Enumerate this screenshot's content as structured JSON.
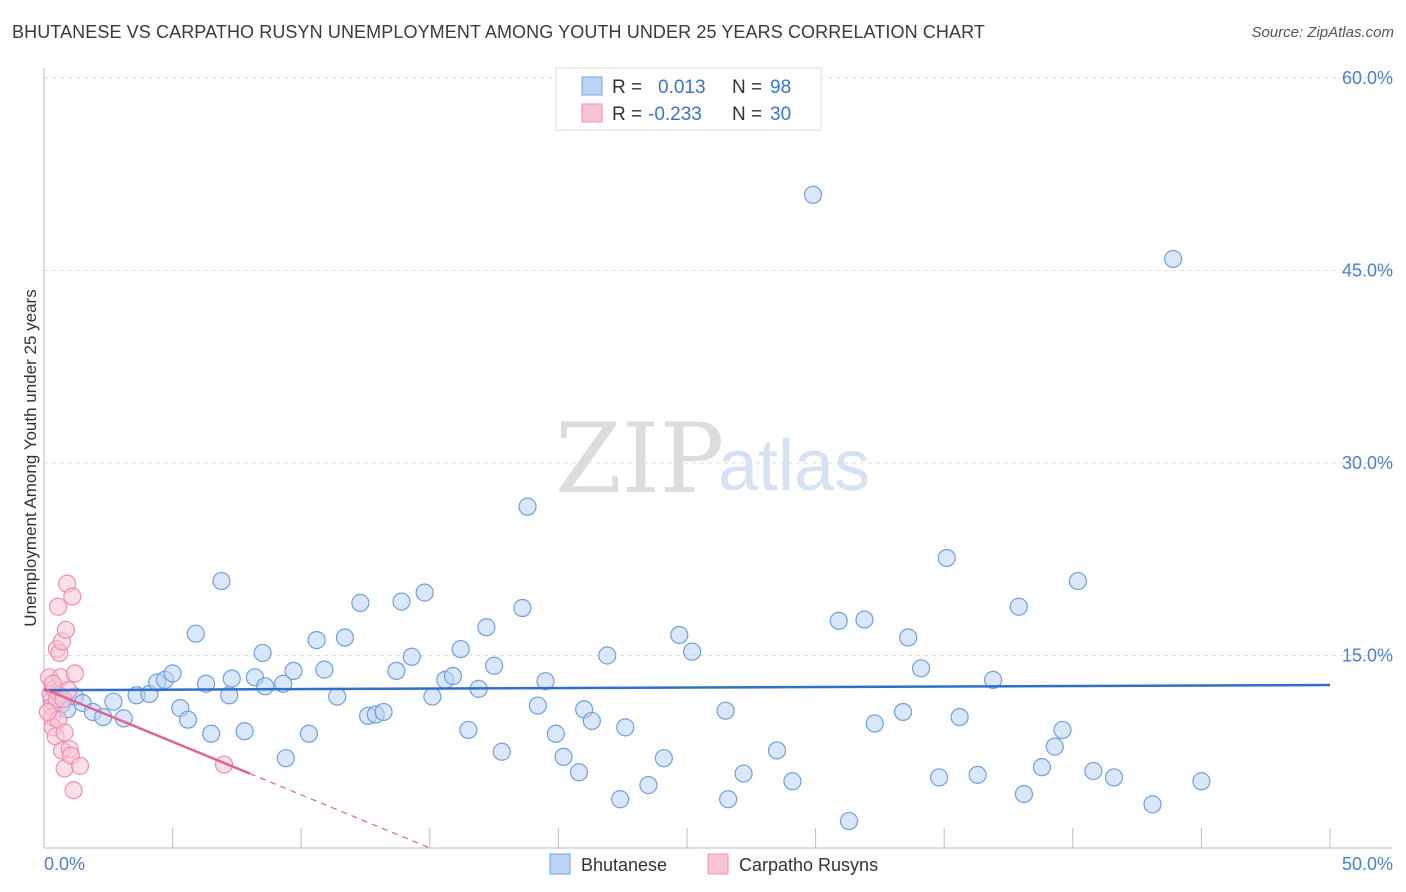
{
  "header": {
    "title": "BHUTANESE VS CARPATHO RUSYN UNEMPLOYMENT AMONG YOUTH UNDER 25 YEARS CORRELATION CHART",
    "source": "Source: ZipAtlas.com"
  },
  "watermark": {
    "zip": "ZIP",
    "atlas": "atlas"
  },
  "colors": {
    "blue": "#6fa0e0",
    "blue_fill": "#bcd4f4",
    "blue_line": "#2f6fc9",
    "pink": "#ef8fb0",
    "pink_fill": "#f8c4d6",
    "pink_line": "#e0648f"
  },
  "chart_data": {
    "type": "scatter",
    "title": "BHUTANESE VS CARPATHO RUSYN UNEMPLOYMENT AMONG YOUTH UNDER 25 YEARS CORRELATION CHART",
    "xlabel": "",
    "ylabel": "Unemployment Among Youth under 25 years",
    "xlim": [
      0,
      50
    ],
    "ylim": [
      0,
      60
    ],
    "x_tick_labels": [
      "0.0%",
      "50.0%"
    ],
    "y_ticks": [
      15,
      30,
      45,
      60
    ],
    "y_tick_labels": [
      "15.0%",
      "30.0%",
      "45.0%",
      "60.0%"
    ],
    "legend": [
      {
        "name": "Bhutanese",
        "r_label": "R =",
        "r": "0.013",
        "n_label": "N =",
        "n": "98"
      },
      {
        "name": "Carpatho Rusyns",
        "r_label": "R =",
        "r": "-0.233",
        "n_label": "N =",
        "n": "30"
      }
    ],
    "series": [
      {
        "name": "Bhutanese",
        "trend": {
          "x": [
            0,
            50
          ],
          "y": [
            12.3,
            12.7
          ]
        },
        "points": [
          [
            0.3,
            11.5
          ],
          [
            0.5,
            12.0
          ],
          [
            0.7,
            11.2
          ],
          [
            0.9,
            10.8
          ],
          [
            1.2,
            11.8
          ],
          [
            1.5,
            11.3
          ],
          [
            1.9,
            10.6
          ],
          [
            2.3,
            10.2
          ],
          [
            2.7,
            11.4
          ],
          [
            3.1,
            10.1
          ],
          [
            3.6,
            11.9
          ],
          [
            4.1,
            12.0
          ],
          [
            4.4,
            12.9
          ],
          [
            4.7,
            13.1
          ],
          [
            5.0,
            13.6
          ],
          [
            5.3,
            10.9
          ],
          [
            5.6,
            10.0
          ],
          [
            5.9,
            16.7
          ],
          [
            6.3,
            12.8
          ],
          [
            6.5,
            8.9
          ],
          [
            6.9,
            20.8
          ],
          [
            7.2,
            11.9
          ],
          [
            7.3,
            13.2
          ],
          [
            7.8,
            9.1
          ],
          [
            8.2,
            13.3
          ],
          [
            8.5,
            15.2
          ],
          [
            8.6,
            12.6
          ],
          [
            9.3,
            12.8
          ],
          [
            9.4,
            7.0
          ],
          [
            9.7,
            13.8
          ],
          [
            10.3,
            8.9
          ],
          [
            10.6,
            16.2
          ],
          [
            10.9,
            13.9
          ],
          [
            11.4,
            11.8
          ],
          [
            11.7,
            16.4
          ],
          [
            12.3,
            19.1
          ],
          [
            12.6,
            10.3
          ],
          [
            12.9,
            10.4
          ],
          [
            13.2,
            10.6
          ],
          [
            13.7,
            13.8
          ],
          [
            13.9,
            19.2
          ],
          [
            14.3,
            14.9
          ],
          [
            14.8,
            19.9
          ],
          [
            15.1,
            11.8
          ],
          [
            15.6,
            13.1
          ],
          [
            15.9,
            13.4
          ],
          [
            16.2,
            15.5
          ],
          [
            16.5,
            9.2
          ],
          [
            16.9,
            12.4
          ],
          [
            17.2,
            17.2
          ],
          [
            17.5,
            14.2
          ],
          [
            17.8,
            7.5
          ],
          [
            18.6,
            18.7
          ],
          [
            18.8,
            26.6
          ],
          [
            19.2,
            11.1
          ],
          [
            19.5,
            13.0
          ],
          [
            19.9,
            8.9
          ],
          [
            20.2,
            7.1
          ],
          [
            20.8,
            5.9
          ],
          [
            21.0,
            10.8
          ],
          [
            21.3,
            9.9
          ],
          [
            21.9,
            15.0
          ],
          [
            22.4,
            3.8
          ],
          [
            22.6,
            9.4
          ],
          [
            23.5,
            4.9
          ],
          [
            24.1,
            7.0
          ],
          [
            24.7,
            16.6
          ],
          [
            25.2,
            15.3
          ],
          [
            26.5,
            10.7
          ],
          [
            26.6,
            3.8
          ],
          [
            27.2,
            5.8
          ],
          [
            28.5,
            7.6
          ],
          [
            29.1,
            5.2
          ],
          [
            29.9,
            50.9
          ],
          [
            30.9,
            17.7
          ],
          [
            31.3,
            2.1
          ],
          [
            31.9,
            17.8
          ],
          [
            32.3,
            9.7
          ],
          [
            33.4,
            10.6
          ],
          [
            33.6,
            16.4
          ],
          [
            34.1,
            14.0
          ],
          [
            34.8,
            5.5
          ],
          [
            35.1,
            22.6
          ],
          [
            35.6,
            10.2
          ],
          [
            36.3,
            5.7
          ],
          [
            36.9,
            13.1
          ],
          [
            37.9,
            18.8
          ],
          [
            38.1,
            4.2
          ],
          [
            38.8,
            6.3
          ],
          [
            39.3,
            7.9
          ],
          [
            39.6,
            9.2
          ],
          [
            40.2,
            20.8
          ],
          [
            40.8,
            6.0
          ],
          [
            41.6,
            5.5
          ],
          [
            43.1,
            3.4
          ],
          [
            43.9,
            45.9
          ],
          [
            45.0,
            5.2
          ],
          [
            0.6,
            11.9
          ]
        ]
      },
      {
        "name": "Carpatho Rusyns",
        "trend": {
          "x": [
            0,
            8
          ],
          "y": [
            12.4,
            5.8
          ]
        },
        "trend_dashed": {
          "x": [
            8,
            15
          ],
          "y": [
            5.8,
            0.0
          ]
        },
        "points": [
          [
            0.2,
            13.3
          ],
          [
            0.25,
            12.0
          ],
          [
            0.3,
            11.0
          ],
          [
            0.3,
            10.2
          ],
          [
            0.35,
            9.4
          ],
          [
            0.4,
            12.4
          ],
          [
            0.45,
            8.7
          ],
          [
            0.5,
            15.5
          ],
          [
            0.5,
            11.6
          ],
          [
            0.55,
            18.8
          ],
          [
            0.55,
            10.0
          ],
          [
            0.6,
            15.2
          ],
          [
            0.65,
            13.3
          ],
          [
            0.7,
            16.1
          ],
          [
            0.7,
            7.6
          ],
          [
            0.75,
            11.6
          ],
          [
            0.8,
            9.0
          ],
          [
            0.8,
            6.2
          ],
          [
            0.85,
            17.0
          ],
          [
            0.9,
            20.6
          ],
          [
            0.95,
            12.3
          ],
          [
            1.0,
            7.7
          ],
          [
            1.05,
            7.2
          ],
          [
            1.1,
            19.6
          ],
          [
            1.15,
            4.5
          ],
          [
            1.2,
            13.6
          ],
          [
            1.4,
            6.4
          ],
          [
            7.0,
            6.5
          ],
          [
            0.15,
            10.6
          ],
          [
            0.35,
            12.8
          ]
        ]
      }
    ]
  }
}
